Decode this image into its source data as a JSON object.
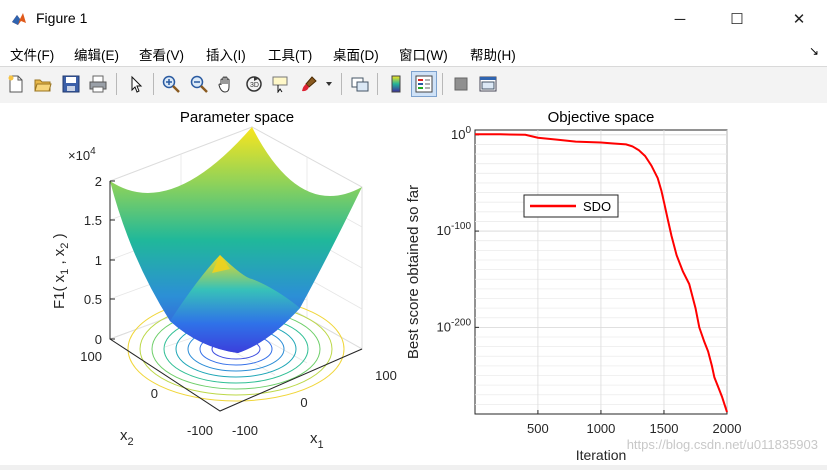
{
  "window": {
    "title": "Figure 1",
    "minimize_glyph": "─",
    "maximize_glyph": "☐",
    "close_glyph": "✕"
  },
  "menu": {
    "items": [
      "文件(F)",
      "编辑(E)",
      "查看(V)",
      "插入(I)",
      "工具(T)",
      "桌面(D)",
      "窗口(W)",
      "帮助(H)"
    ],
    "dock_glyph": "↘"
  },
  "toolbar": {
    "buttons": [
      "new-figure-icon",
      "open-icon",
      "save-icon",
      "print-icon",
      "edit-plot-arrow-icon",
      "zoom-in-icon",
      "zoom-out-icon",
      "pan-hand-icon",
      "rotate-3d-icon",
      "data-cursor-icon",
      "brush-icon",
      "brush-dropdown-icon",
      "link-plot-icon",
      "colorbar-icon",
      "legend-icon",
      "hide-plot-tools-icon",
      "show-plot-tools-icon"
    ],
    "pressed": "legend-icon"
  },
  "left_plot": {
    "title": "Parameter space",
    "exponent_label": "×10",
    "exponent_power": "4",
    "z_ticks": [
      "0",
      "0.5",
      "1",
      "1.5",
      "2"
    ],
    "x1_ticks": [
      "-100",
      "0",
      "100"
    ],
    "x2_ticks": [
      "-100",
      "0",
      "100"
    ],
    "x1_label": "x",
    "x1_sub": "1",
    "x2_label": "x",
    "x2_sub": "2",
    "zlabel": "F1( x",
    "zlabel_sub1": "1",
    "zlabel_mid": " , x",
    "zlabel_sub2": "2",
    "zlabel_end": " )"
  },
  "chart_data": {
    "type": "line",
    "title": "Objective space",
    "xlabel": "Iteration",
    "ylabel": "Best score obtained so far",
    "yscale": "log",
    "xlim": [
      1,
      2000
    ],
    "ylim_exponent": [
      -290,
      5
    ],
    "x_ticks": [
      "500",
      "1000",
      "1500",
      "2000"
    ],
    "y_tick_base": "10",
    "y_tick_exponents": [
      "0",
      "-100",
      "-200"
    ],
    "legend": "top-left",
    "grid": true,
    "series": [
      {
        "name": "SDO",
        "color": "#ff0000",
        "x": [
          1,
          50,
          200,
          400,
          500,
          650,
          800,
          1000,
          1100,
          1200,
          1250,
          1300,
          1350,
          1400,
          1450,
          1480,
          1500,
          1530,
          1560,
          1600,
          1650,
          1700,
          1750,
          1780,
          1820,
          1850,
          1880,
          1900,
          1930,
          1960,
          1980,
          2000
        ],
        "log10_y": [
          3,
          2,
          1,
          0,
          -3,
          -5,
          -7,
          -8,
          -9,
          -10,
          -12,
          -16,
          -22,
          -32,
          -45,
          -58,
          -70,
          -88,
          -105,
          -125,
          -142,
          -155,
          -180,
          -200,
          -215,
          -225,
          -240,
          -252,
          -262,
          -272,
          -280,
          -288
        ]
      }
    ]
  },
  "watermark": "https://blog.csdn.net/u011835903"
}
